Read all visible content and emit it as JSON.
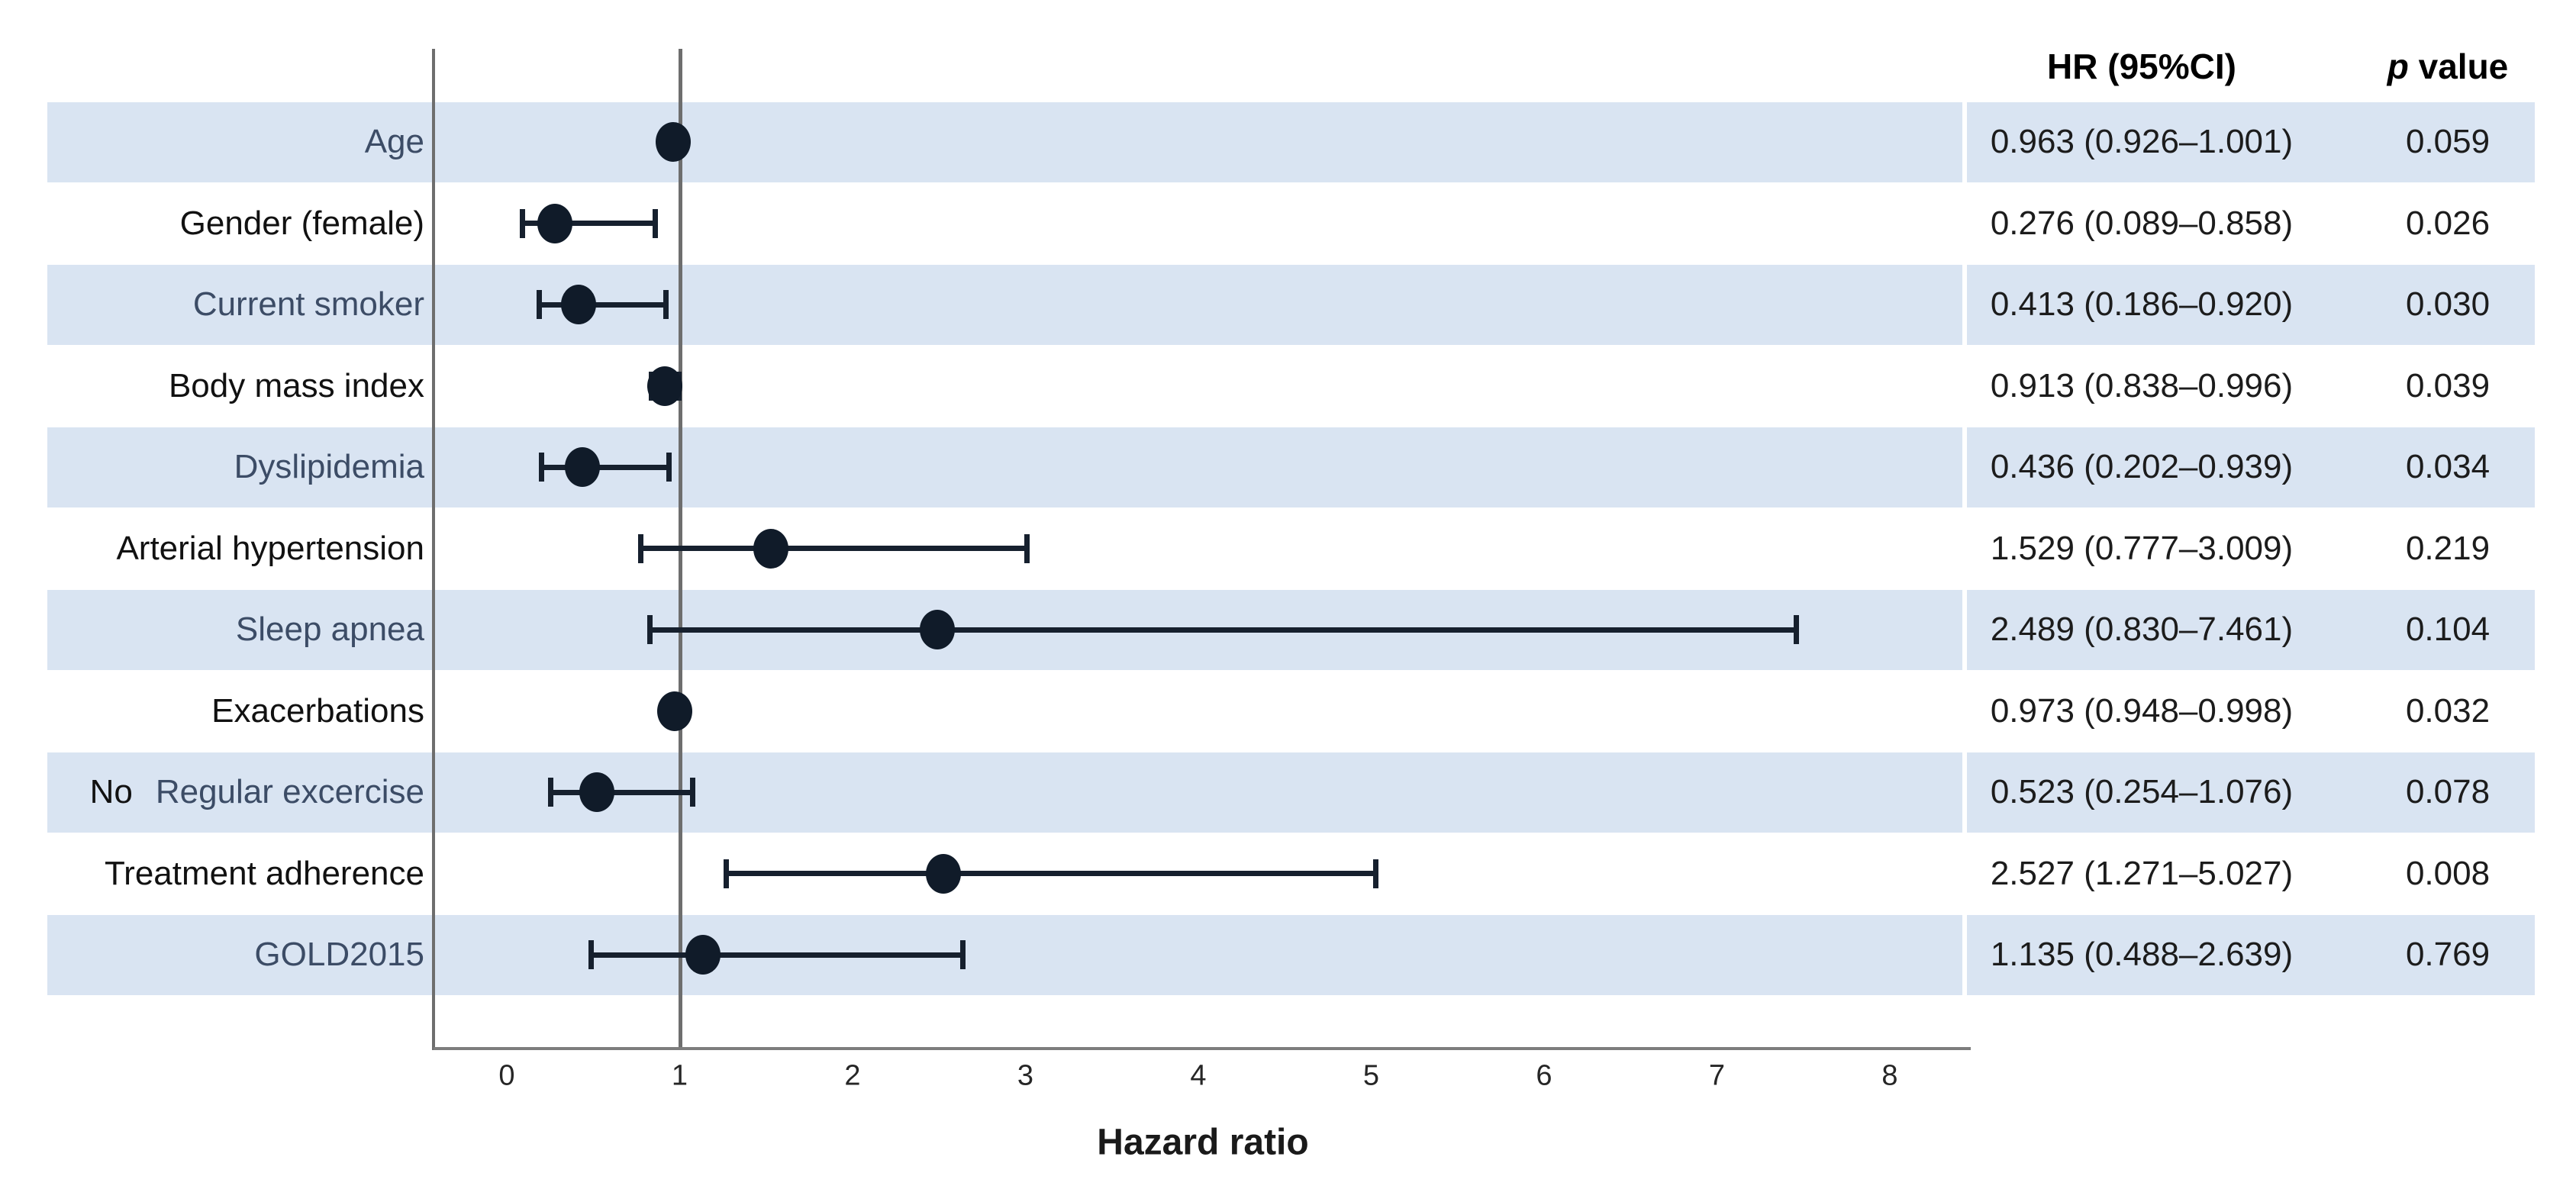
{
  "xlabel": "Hazard ratio",
  "table": {
    "hr_header": "HR (95%CI)",
    "p_header_italic": "p",
    "p_header_rest": " value"
  },
  "chart_data": {
    "type": "forest",
    "xlabel": "Hazard ratio",
    "x_ticks": [
      "0",
      "1",
      "2",
      "3",
      "4",
      "5",
      "6",
      "7",
      "8"
    ],
    "xlim": [
      -0.45,
      8.45
    ],
    "reference_line": 1,
    "grid": false,
    "columns": [
      "HR (95%CI)",
      "p value"
    ],
    "rows": [
      {
        "label": "Age",
        "hr": 0.963,
        "ci_low": 0.926,
        "ci_high": 1.001,
        "hr_ci": "0.963 (0.926–1.001)",
        "p": "0.059",
        "shaded": true
      },
      {
        "label": "Gender (female)",
        "hr": 0.276,
        "ci_low": 0.089,
        "ci_high": 0.858,
        "hr_ci": "0.276 (0.089–0.858)",
        "p": "0.026",
        "shaded": false
      },
      {
        "label": "Current smoker",
        "hr": 0.413,
        "ci_low": 0.186,
        "ci_high": 0.92,
        "hr_ci": "0.413 (0.186–0.920)",
        "p": "0.030",
        "shaded": true
      },
      {
        "label": "Body mass index",
        "hr": 0.913,
        "ci_low": 0.838,
        "ci_high": 0.996,
        "hr_ci": "0.913 (0.838–0.996)",
        "p": "0.039",
        "shaded": false
      },
      {
        "label": "Dyslipidemia",
        "hr": 0.436,
        "ci_low": 0.202,
        "ci_high": 0.939,
        "hr_ci": "0.436 (0.202–0.939)",
        "p": "0.034",
        "shaded": true
      },
      {
        "label": "Arterial hypertension",
        "hr": 1.529,
        "ci_low": 0.777,
        "ci_high": 3.009,
        "hr_ci": "1.529 (0.777–3.009)",
        "p": "0.219",
        "shaded": false
      },
      {
        "label": "Sleep apnea",
        "hr": 2.489,
        "ci_low": 0.83,
        "ci_high": 7.461,
        "hr_ci": "2.489 (0.830–7.461)",
        "p": "0.104",
        "shaded": true
      },
      {
        "label": "Exacerbations",
        "hr": 0.973,
        "ci_low": 0.948,
        "ci_high": 0.998,
        "hr_ci": "0.973 (0.948–0.998)",
        "p": "0.032",
        "shaded": false
      },
      {
        "label_prefix": "No",
        "label": "Regular excercise",
        "hr": 0.523,
        "ci_low": 0.254,
        "ci_high": 1.076,
        "hr_ci": "0.523 (0.254–1.076)",
        "p": "0.078",
        "shaded": true
      },
      {
        "label": "Treatment adherence",
        "hr": 2.527,
        "ci_low": 1.271,
        "ci_high": 5.027,
        "hr_ci": "2.527 (1.271–5.027)",
        "p": "0.008",
        "shaded": false
      },
      {
        "label": "GOLD2015",
        "hr": 1.135,
        "ci_low": 0.488,
        "ci_high": 2.639,
        "hr_ci": "1.135 (0.488–2.639)",
        "p": "0.769",
        "shaded": true
      }
    ]
  },
  "colors": {
    "band": "#d9e4f2",
    "marker": "#101b29",
    "ci": "#16202e",
    "axis": "#7d7d7d",
    "ref_line": "#6e6e6e",
    "label_navy": "#3c4c66",
    "label_black": "#111111",
    "value_text": "#1c1c1c",
    "header_text": "#000000"
  }
}
